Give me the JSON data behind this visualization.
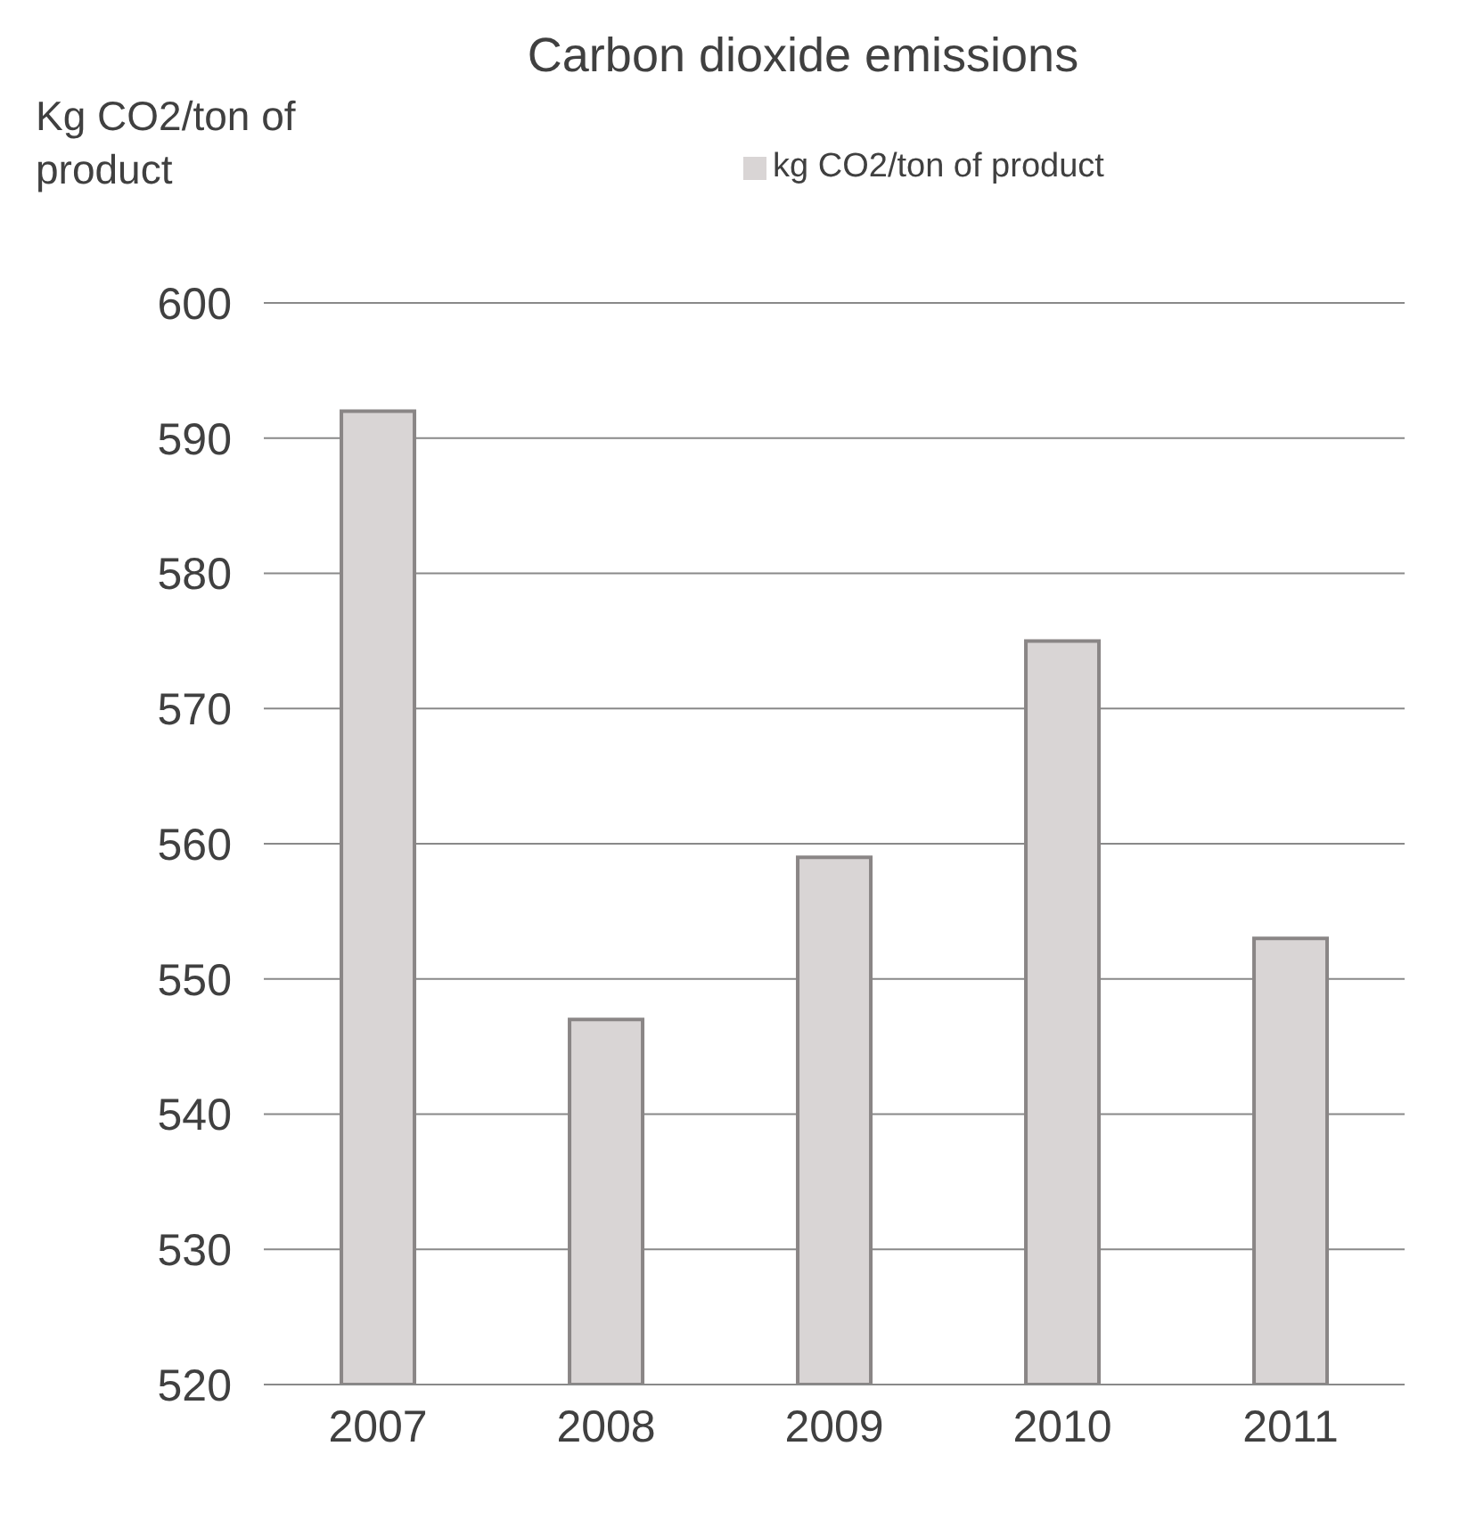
{
  "chart_data": {
    "type": "bar",
    "title": "Carbon dioxide emissions",
    "ylabel": "Kg CO2/ton of product",
    "categories": [
      "2007",
      "2008",
      "2009",
      "2010",
      "2011"
    ],
    "series": [
      {
        "name": "kg CO2/ton of product",
        "color": "#d9d5d5",
        "values": [
          592,
          547,
          559,
          575,
          553
        ]
      }
    ],
    "ylim": [
      520,
      600
    ],
    "yticks": [
      520,
      530,
      540,
      550,
      560,
      570,
      580,
      590,
      600
    ],
    "grid": "y",
    "legend": "top"
  }
}
